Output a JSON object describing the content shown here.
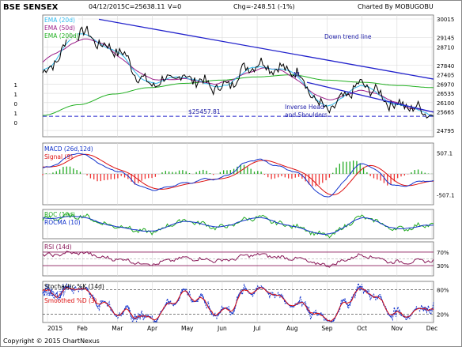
{
  "header": {
    "title": "BSE SENSEX",
    "date": "04/12/2015",
    "close": "C=25638.11",
    "volume": "V=0",
    "change": "Chg=-248.51 (-1%)",
    "charted_by": "Charted By MOBUGOBU"
  },
  "footer": {
    "copyright": "Copyright © 2015 ChartNexus",
    "brand": "ChartNexus"
  },
  "months": [
    "2015",
    "Feb",
    "Mar",
    "Apr",
    "May",
    "Jun",
    "Jul",
    "Aug",
    "Sep",
    "Oct",
    "Nov",
    "Dec"
  ],
  "colors": {
    "price": "#000000",
    "ema20": "#33bbee",
    "ema50": "#9b1f8a",
    "ema200": "#22b022",
    "trend": "#2222cc",
    "support": "#2222cc",
    "grid": "#d8d8d8",
    "macd": "#1133cc",
    "signal": "#dd1111",
    "hist_pos": "#22aa22",
    "hist_neg": "#ee3333",
    "roc": "#22aa22",
    "rocma": "#1133cc",
    "rsi": "#8a1a5a",
    "stoch_k": "#1133cc",
    "stoch_d": "#dd1111"
  },
  "chart_data": [
    {
      "type": "line",
      "panel": "price",
      "legend": [
        "EMA (20d)",
        "EMA (50d)",
        "EMA (200d)"
      ],
      "y_ticks": [
        30015,
        29145,
        28710,
        27840,
        27405,
        26970,
        26535,
        26100,
        25665,
        24795
      ],
      "ylim": [
        24500,
        30200
      ],
      "x": [
        "2015-01",
        "2015-02",
        "2015-03",
        "2015-04",
        "2015-05",
        "2015-06",
        "2015-07",
        "2015-08",
        "2015-09",
        "2015-10",
        "2015-11",
        "2015-12"
      ],
      "series": [
        {
          "name": "Close",
          "values": [
            27500,
            29400,
            28600,
            27000,
            27300,
            26800,
            27900,
            27600,
            25800,
            26900,
            26000,
            25638
          ]
        },
        {
          "name": "EMA (20d)",
          "values": [
            27300,
            28700,
            28800,
            27600,
            27200,
            27000,
            27700,
            27700,
            26300,
            26600,
            26200,
            25900
          ]
        },
        {
          "name": "EMA (50d)",
          "values": [
            27100,
            28200,
            28600,
            28000,
            27400,
            27100,
            27400,
            27600,
            26800,
            26500,
            26400,
            26100
          ]
        },
        {
          "name": "EMA (200d)",
          "values": [
            25500,
            26000,
            26500,
            26800,
            27000,
            27150,
            27300,
            27400,
            27150,
            27050,
            26900,
            26800
          ]
        }
      ],
      "annotations": [
        {
          "text": "Down trend line"
        },
        {
          "text": "NL"
        },
        {
          "text": "$25457.81",
          "value": 25457.81
        },
        {
          "text": "Inverse Head"
        },
        {
          "text": "and Shoulders"
        }
      ],
      "left_ticks": [
        "1",
        "1",
        "0",
        "1",
        "0"
      ]
    },
    {
      "type": "line",
      "panel": "macd",
      "legend": [
        "MACD (26d,12d)",
        "Signal (9)"
      ],
      "y_ticks": [
        "507.1",
        "-507.1"
      ],
      "ylim": [
        -750,
        750
      ],
      "x": [
        "2015-01",
        "2015-02",
        "2015-03",
        "2015-04",
        "2015-05",
        "2015-06",
        "2015-07",
        "2015-08",
        "2015-09",
        "2015-10",
        "2015-11",
        "2015-12"
      ],
      "series": [
        {
          "name": "MACD (26d,12d)",
          "values": [
            150,
            500,
            100,
            -400,
            -200,
            -100,
            350,
            100,
            -550,
            250,
            -300,
            -150
          ]
        },
        {
          "name": "Signal (9)",
          "values": [
            100,
            400,
            200,
            -250,
            -250,
            -100,
            250,
            150,
            -450,
            150,
            -200,
            -150
          ]
        }
      ]
    },
    {
      "type": "line",
      "panel": "roc",
      "legend": [
        "ROC (10d)",
        "ROCMA (10)"
      ],
      "x": [
        "2015-01",
        "2015-02",
        "2015-03",
        "2015-04",
        "2015-05",
        "2015-06",
        "2015-07",
        "2015-08",
        "2015-09",
        "2015-10",
        "2015-11",
        "2015-12"
      ],
      "series": [
        {
          "name": "ROC (10d)",
          "values": [
            3,
            5,
            -1,
            -5,
            2,
            -2,
            4,
            -1,
            -7,
            4,
            -3,
            0
          ]
        },
        {
          "name": "ROCMA (10)",
          "values": [
            2,
            3,
            0,
            -3,
            0,
            -1,
            2,
            0,
            -4,
            2,
            -2,
            -1
          ]
        }
      ]
    },
    {
      "type": "line",
      "panel": "rsi",
      "legend": [
        "RSI (14d)"
      ],
      "y_ticks": [
        "70%",
        "30%"
      ],
      "ylim": [
        0,
        100
      ],
      "x": [
        "2015-01",
        "2015-02",
        "2015-03",
        "2015-04",
        "2015-05",
        "2015-06",
        "2015-07",
        "2015-08",
        "2015-09",
        "2015-10",
        "2015-11",
        "2015-12"
      ],
      "series": [
        {
          "name": "RSI (14d)",
          "values": [
            60,
            68,
            50,
            35,
            52,
            45,
            62,
            52,
            32,
            60,
            40,
            45
          ]
        }
      ]
    },
    {
      "type": "line",
      "panel": "stochastic",
      "legend": [
        "Stochastic %K (14d)",
        "%D (3)",
        "Smoothed %D (3)"
      ],
      "y_ticks": [
        "80%",
        "20%"
      ],
      "ylim": [
        0,
        100
      ],
      "x": [
        "2015-01",
        "2015-02",
        "2015-03",
        "2015-04",
        "2015-05",
        "2015-06",
        "2015-07",
        "2015-08",
        "2015-09",
        "2015-10",
        "2015-11",
        "2015-12"
      ],
      "series": [
        {
          "name": "Stochastic %K (14d)",
          "values": [
            70,
            85,
            30,
            10,
            70,
            25,
            85,
            50,
            10,
            80,
            20,
            40
          ]
        },
        {
          "name": "%D (3)",
          "values": [
            65,
            80,
            35,
            15,
            60,
            30,
            80,
            55,
            15,
            75,
            25,
            35
          ]
        },
        {
          "name": "Smoothed %D (3)",
          "values": [
            60,
            75,
            40,
            20,
            55,
            35,
            75,
            55,
            20,
            70,
            30,
            35
          ]
        }
      ]
    }
  ]
}
